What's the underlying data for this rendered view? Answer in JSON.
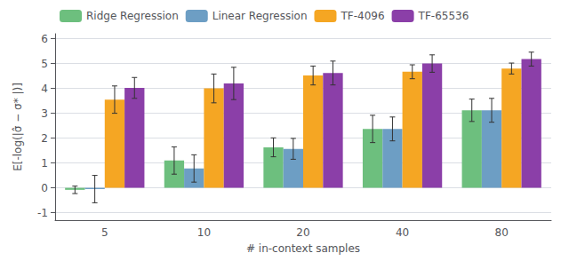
{
  "chart_data": {
    "type": "bar",
    "categories": [
      "5",
      "10",
      "20",
      "40",
      "80"
    ],
    "series": [
      {
        "name": "Ridge Regression",
        "color": "#6dbf7e",
        "values": [
          -0.08,
          1.1,
          1.63,
          2.37,
          3.12
        ],
        "errors": [
          0.15,
          0.55,
          0.38,
          0.55,
          0.45
        ]
      },
      {
        "name": "Linear Regression",
        "color": "#6d9ec4",
        "values": [
          -0.05,
          0.78,
          1.57,
          2.37,
          3.12
        ],
        "errors": [
          0.55,
          0.55,
          0.42,
          0.48,
          0.48
        ]
      },
      {
        "name": "TF-4096",
        "color": "#f5a623",
        "values": [
          3.55,
          4.0,
          4.52,
          4.67,
          4.8
        ],
        "errors": [
          0.55,
          0.58,
          0.38,
          0.28,
          0.22
        ]
      },
      {
        "name": "TF-65536",
        "color": "#8b3fa8",
        "values": [
          4.02,
          4.2,
          4.62,
          5.0,
          5.18
        ],
        "errors": [
          0.42,
          0.65,
          0.48,
          0.35,
          0.28
        ]
      }
    ],
    "xlabel": "# in-context samples",
    "ylabel": "E[-log(|σ̂ − σ* |)]",
    "ylim": [
      -1.3,
      6.2
    ],
    "yticks": [
      -1,
      0,
      1,
      2,
      3,
      4,
      5,
      6
    ],
    "grid": true,
    "legend": "upper left"
  }
}
